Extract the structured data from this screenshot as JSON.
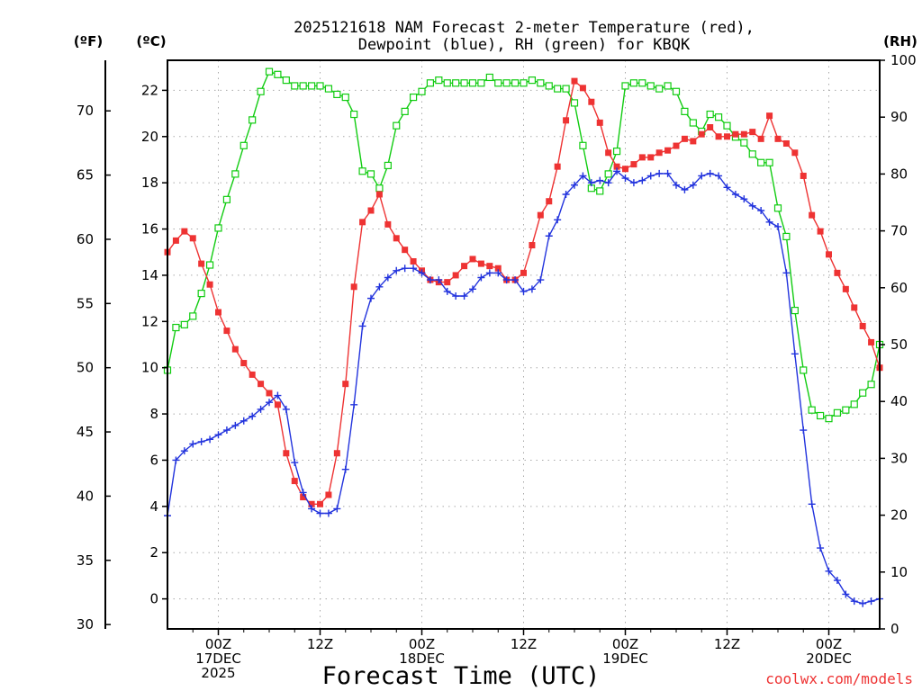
{
  "chart_data": {
    "type": "line",
    "title_line1": "2025121618 NAM Forecast 2-meter Temperature (red),",
    "title_line2": "Dewpoint (blue), RH (green) for KBQK",
    "xlabel": "Forecast Time (UTC)",
    "credit": "coolwx.com/models",
    "colors": {
      "temperature": "#ee3333",
      "dewpoint": "#2233dd",
      "rh": "#11cc11"
    },
    "unit_labels": {
      "fahrenheit": "(ºF)",
      "celsius": "(ºC)",
      "rh": "(RH)"
    },
    "axes": {
      "celsius": {
        "min": -1.3,
        "max": 23.3,
        "ticks": [
          0,
          2,
          4,
          6,
          8,
          10,
          12,
          14,
          16,
          18,
          20,
          22
        ]
      },
      "fahrenheit": {
        "ticks": [
          30,
          35,
          40,
          45,
          50,
          55,
          60,
          65,
          70
        ]
      },
      "rh": {
        "min": 0,
        "max": 100,
        "ticks": [
          0,
          10,
          20,
          30,
          40,
          50,
          60,
          70,
          80,
          90,
          100
        ]
      },
      "hours": {
        "min": 18,
        "max": 102
      }
    },
    "x_ticks": [
      {
        "hour": 24,
        "lines": [
          "00Z",
          "17DEC",
          "2025"
        ]
      },
      {
        "hour": 36,
        "lines": [
          "12Z"
        ]
      },
      {
        "hour": 48,
        "lines": [
          "00Z",
          "18DEC"
        ]
      },
      {
        "hour": 60,
        "lines": [
          "12Z"
        ]
      },
      {
        "hour": 72,
        "lines": [
          "00Z",
          "19DEC"
        ]
      },
      {
        "hour": 84,
        "lines": [
          "12Z"
        ]
      },
      {
        "hour": 96,
        "lines": [
          "00Z",
          "20DEC"
        ]
      }
    ],
    "series": [
      {
        "name": "Temperature (°C)",
        "axis": "celsius",
        "marker": "filled-square",
        "points": [
          [
            18,
            15
          ],
          [
            19,
            15.5
          ],
          [
            20,
            15.9
          ],
          [
            21,
            15.6
          ],
          [
            22,
            14.5
          ],
          [
            23,
            13.6
          ],
          [
            24,
            12.4
          ],
          [
            25,
            11.6
          ],
          [
            26,
            10.8
          ],
          [
            27,
            10.2
          ],
          [
            28,
            9.7
          ],
          [
            29,
            9.3
          ],
          [
            30,
            8.9
          ],
          [
            31,
            8.4
          ],
          [
            32,
            6.3
          ],
          [
            33,
            5.1
          ],
          [
            34,
            4.4
          ],
          [
            35,
            4.1
          ],
          [
            36,
            4.1
          ],
          [
            37,
            4.5
          ],
          [
            38,
            6.3
          ],
          [
            39,
            9.3
          ],
          [
            40,
            13.5
          ],
          [
            41,
            16.3
          ],
          [
            42,
            16.8
          ],
          [
            43,
            17.5
          ],
          [
            44,
            16.2
          ],
          [
            45,
            15.6
          ],
          [
            46,
            15.1
          ],
          [
            47,
            14.6
          ],
          [
            48,
            14.2
          ],
          [
            49,
            13.8
          ],
          [
            50,
            13.7
          ],
          [
            51,
            13.7
          ],
          [
            52,
            14.0
          ],
          [
            53,
            14.4
          ],
          [
            54,
            14.7
          ],
          [
            55,
            14.5
          ],
          [
            56,
            14.4
          ],
          [
            57,
            14.3
          ],
          [
            58,
            13.8
          ],
          [
            59,
            13.8
          ],
          [
            60,
            14.1
          ],
          [
            61,
            15.3
          ],
          [
            62,
            16.6
          ],
          [
            63,
            17.2
          ],
          [
            64,
            18.7
          ],
          [
            65,
            20.7
          ],
          [
            66,
            22.4
          ],
          [
            67,
            22.1
          ],
          [
            68,
            21.5
          ],
          [
            69,
            20.6
          ],
          [
            70,
            19.3
          ],
          [
            71,
            18.7
          ],
          [
            72,
            18.6
          ],
          [
            73,
            18.8
          ],
          [
            74,
            19.1
          ],
          [
            75,
            19.1
          ],
          [
            76,
            19.3
          ],
          [
            77,
            19.4
          ],
          [
            78,
            19.6
          ],
          [
            79,
            19.9
          ],
          [
            80,
            19.8
          ],
          [
            81,
            20.1
          ],
          [
            82,
            20.4
          ],
          [
            83,
            20.0
          ],
          [
            84,
            20.0
          ],
          [
            85,
            20.1
          ],
          [
            86,
            20.1
          ],
          [
            87,
            20.2
          ],
          [
            88,
            19.9
          ],
          [
            89,
            20.9
          ],
          [
            90,
            19.9
          ],
          [
            91,
            19.7
          ],
          [
            92,
            19.3
          ],
          [
            93,
            18.3
          ],
          [
            94,
            16.6
          ],
          [
            95,
            15.9
          ],
          [
            96,
            14.9
          ],
          [
            97,
            14.1
          ],
          [
            98,
            13.4
          ],
          [
            99,
            12.6
          ],
          [
            100,
            11.8
          ],
          [
            101,
            11.1
          ],
          [
            102,
            10.0
          ]
        ]
      },
      {
        "name": "Dewpoint (°C)",
        "axis": "celsius",
        "marker": "plus",
        "points": [
          [
            18,
            3.6
          ],
          [
            19,
            6.0
          ],
          [
            20,
            6.4
          ],
          [
            21,
            6.7
          ],
          [
            22,
            6.8
          ],
          [
            23,
            6.9
          ],
          [
            24,
            7.1
          ],
          [
            25,
            7.3
          ],
          [
            26,
            7.5
          ],
          [
            27,
            7.7
          ],
          [
            28,
            7.9
          ],
          [
            29,
            8.2
          ],
          [
            30,
            8.5
          ],
          [
            31,
            8.8
          ],
          [
            32,
            8.2
          ],
          [
            33,
            5.9
          ],
          [
            34,
            4.6
          ],
          [
            35,
            3.9
          ],
          [
            36,
            3.7
          ],
          [
            37,
            3.7
          ],
          [
            38,
            3.9
          ],
          [
            39,
            5.6
          ],
          [
            40,
            8.4
          ],
          [
            41,
            11.8
          ],
          [
            42,
            13.0
          ],
          [
            43,
            13.5
          ],
          [
            44,
            13.9
          ],
          [
            45,
            14.2
          ],
          [
            46,
            14.3
          ],
          [
            47,
            14.3
          ],
          [
            48,
            14.1
          ],
          [
            49,
            13.8
          ],
          [
            50,
            13.8
          ],
          [
            51,
            13.3
          ],
          [
            52,
            13.1
          ],
          [
            53,
            13.1
          ],
          [
            54,
            13.4
          ],
          [
            55,
            13.9
          ],
          [
            56,
            14.1
          ],
          [
            57,
            14.1
          ],
          [
            58,
            13.8
          ],
          [
            59,
            13.8
          ],
          [
            60,
            13.3
          ],
          [
            61,
            13.4
          ],
          [
            62,
            13.8
          ],
          [
            63,
            15.7
          ],
          [
            64,
            16.4
          ],
          [
            65,
            17.5
          ],
          [
            66,
            17.9
          ],
          [
            67,
            18.3
          ],
          [
            68,
            18.0
          ],
          [
            69,
            18.1
          ],
          [
            70,
            18.0
          ],
          [
            71,
            18.5
          ],
          [
            72,
            18.2
          ],
          [
            73,
            18.0
          ],
          [
            74,
            18.1
          ],
          [
            75,
            18.3
          ],
          [
            76,
            18.4
          ],
          [
            77,
            18.4
          ],
          [
            78,
            17.9
          ],
          [
            79,
            17.7
          ],
          [
            80,
            17.9
          ],
          [
            81,
            18.3
          ],
          [
            82,
            18.4
          ],
          [
            83,
            18.3
          ],
          [
            84,
            17.8
          ],
          [
            85,
            17.5
          ],
          [
            86,
            17.3
          ],
          [
            87,
            17.0
          ],
          [
            88,
            16.8
          ],
          [
            89,
            16.3
          ],
          [
            90,
            16.1
          ],
          [
            91,
            14.1
          ],
          [
            92,
            10.6
          ],
          [
            93,
            7.3
          ],
          [
            94,
            4.1
          ],
          [
            95,
            2.2
          ],
          [
            96,
            1.2
          ],
          [
            97,
            0.8
          ],
          [
            98,
            0.2
          ],
          [
            99,
            -0.1
          ],
          [
            100,
            -0.2
          ],
          [
            101,
            -0.1
          ],
          [
            102,
            0.0
          ]
        ]
      },
      {
        "name": "Relative Humidity (%)",
        "axis": "rh",
        "marker": "open-square",
        "points": [
          [
            18,
            45.5
          ],
          [
            19,
            53.0
          ],
          [
            20,
            53.5
          ],
          [
            21,
            55.0
          ],
          [
            22,
            59.0
          ],
          [
            23,
            64.0
          ],
          [
            24,
            70.5
          ],
          [
            25,
            75.5
          ],
          [
            26,
            80.0
          ],
          [
            27,
            85.0
          ],
          [
            28,
            89.5
          ],
          [
            29,
            94.5
          ],
          [
            30,
            98.0
          ],
          [
            31,
            97.5
          ],
          [
            32,
            96.5
          ],
          [
            33,
            95.5
          ],
          [
            34,
            95.5
          ],
          [
            35,
            95.5
          ],
          [
            36,
            95.5
          ],
          [
            37,
            95.0
          ],
          [
            38,
            94.0
          ],
          [
            39,
            93.5
          ],
          [
            40,
            90.5
          ],
          [
            41,
            80.5
          ],
          [
            42,
            80.0
          ],
          [
            43,
            77.5
          ],
          [
            44,
            81.5
          ],
          [
            45,
            88.5
          ],
          [
            46,
            91.0
          ],
          [
            47,
            93.5
          ],
          [
            48,
            94.5
          ],
          [
            49,
            96.0
          ],
          [
            50,
            96.5
          ],
          [
            51,
            96.0
          ],
          [
            52,
            96.0
          ],
          [
            53,
            96.0
          ],
          [
            54,
            96.0
          ],
          [
            55,
            96.0
          ],
          [
            56,
            97.0
          ],
          [
            57,
            96.0
          ],
          [
            58,
            96.0
          ],
          [
            59,
            96.0
          ],
          [
            60,
            96.0
          ],
          [
            61,
            96.5
          ],
          [
            62,
            96.0
          ],
          [
            63,
            95.5
          ],
          [
            64,
            95.0
          ],
          [
            65,
            95.0
          ],
          [
            66,
            92.5
          ],
          [
            67,
            85.0
          ],
          [
            68,
            77.5
          ],
          [
            69,
            77.0
          ],
          [
            70,
            80.0
          ],
          [
            71,
            84.0
          ],
          [
            72,
            95.5
          ],
          [
            73,
            96.0
          ],
          [
            74,
            96.0
          ],
          [
            75,
            95.5
          ],
          [
            76,
            95.0
          ],
          [
            77,
            95.5
          ],
          [
            78,
            94.5
          ],
          [
            79,
            91.0
          ],
          [
            80,
            89.0
          ],
          [
            81,
            87.5
          ],
          [
            82,
            90.5
          ],
          [
            83,
            90.0
          ],
          [
            84,
            88.5
          ],
          [
            85,
            86.5
          ],
          [
            86,
            85.5
          ],
          [
            87,
            83.5
          ],
          [
            88,
            82.0
          ],
          [
            89,
            82.0
          ],
          [
            90,
            74.0
          ],
          [
            91,
            69.0
          ],
          [
            92,
            56.0
          ],
          [
            93,
            45.5
          ],
          [
            94,
            38.5
          ],
          [
            95,
            37.5
          ],
          [
            96,
            37.0
          ],
          [
            97,
            38.0
          ],
          [
            98,
            38.5
          ],
          [
            99,
            39.5
          ],
          [
            100,
            41.5
          ],
          [
            101,
            43.0
          ],
          [
            102,
            50.0
          ]
        ]
      }
    ]
  }
}
